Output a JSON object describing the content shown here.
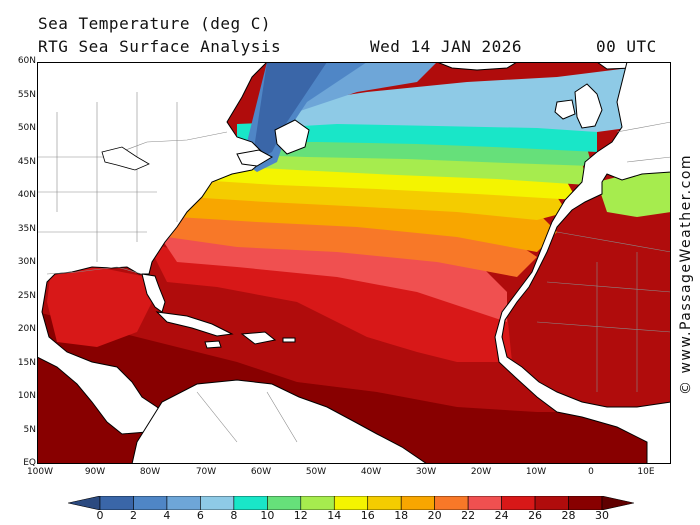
{
  "header": {
    "title_line1": "Sea Temperature (deg C)",
    "title_line2": "RTG Sea Surface Analysis",
    "date": "Wed 14 JAN 2026",
    "time": "00 UTC"
  },
  "credit": "© www.PassageWeather.com",
  "latitude_labels": [
    "60N",
    "55N",
    "50N",
    "45N",
    "40N",
    "35N",
    "30N",
    "25N",
    "20N",
    "15N",
    "10N",
    "5N",
    "EQ"
  ],
  "longitude_labels": [
    "100W",
    "90W",
    "80W",
    "70W",
    "60W",
    "50W",
    "40W",
    "30W",
    "20W",
    "10W",
    "0",
    "10E"
  ],
  "legend": {
    "values": [
      "0",
      "2",
      "4",
      "6",
      "8",
      "10",
      "12",
      "14",
      "16",
      "18",
      "20",
      "22",
      "24",
      "26",
      "28",
      "30"
    ],
    "colors": [
      "#2b4a80",
      "#3a66a8",
      "#4f86c6",
      "#6ea6d8",
      "#8ecae6",
      "#19e6c8",
      "#66e07a",
      "#a6ec4e",
      "#f4f400",
      "#f4cc00",
      "#f8a600",
      "#f87828",
      "#f05050",
      "#d81818",
      "#b00c0c",
      "#880000",
      "#600000"
    ]
  },
  "colors": {
    "land": "#ffffff",
    "land_border": "#000000",
    "political_border": "#8a8a8a"
  }
}
